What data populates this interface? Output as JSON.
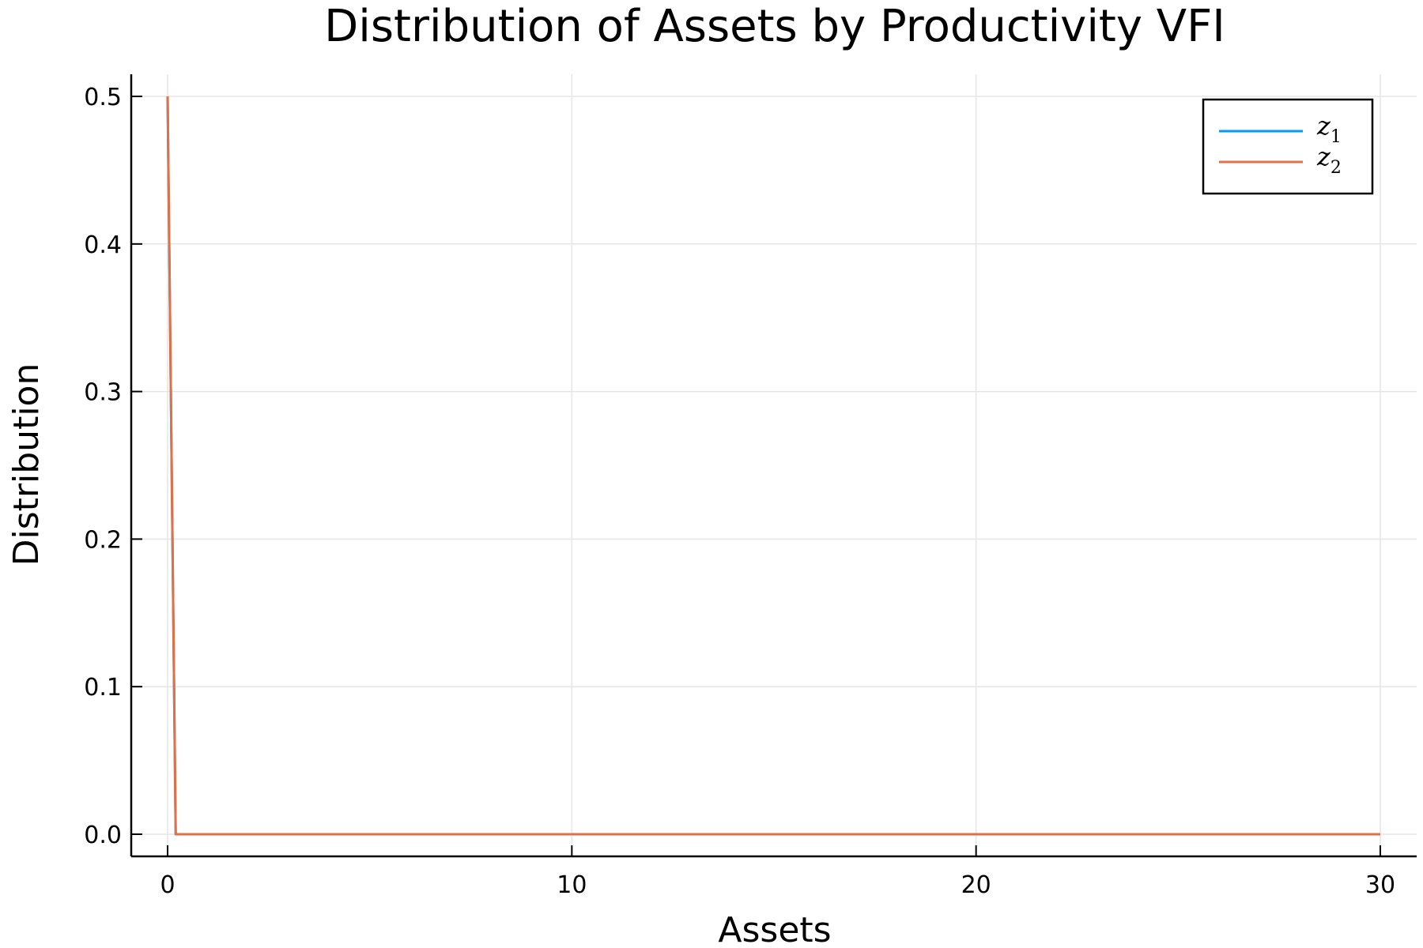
{
  "chart_data": {
    "type": "line",
    "title": "Distribution of Assets by Productivity VFI",
    "xlabel": "Assets",
    "ylabel": "Distribution",
    "xlim": [
      -0.9,
      30.9
    ],
    "ylim": [
      -0.015,
      0.515
    ],
    "xticks": [
      0,
      10,
      20,
      30
    ],
    "xtick_labels": [
      "0",
      "10",
      "20",
      "30"
    ],
    "yticks": [
      0.0,
      0.1,
      0.2,
      0.3,
      0.4,
      0.5
    ],
    "ytick_labels": [
      "0.0",
      "0.1",
      "0.2",
      "0.3",
      "0.4",
      "0.5"
    ],
    "grid": true,
    "legend_position": "top-right",
    "series": [
      {
        "name": "z",
        "subscript": "1",
        "color": "#009af9",
        "x": [
          0.0,
          0.2,
          30.0
        ],
        "y": [
          0.5,
          0.0,
          0.0
        ]
      },
      {
        "name": "z",
        "subscript": "2",
        "color": "#e26f46",
        "x": [
          0.0,
          0.2,
          30.0
        ],
        "y": [
          0.5,
          0.0,
          0.0
        ]
      }
    ]
  }
}
